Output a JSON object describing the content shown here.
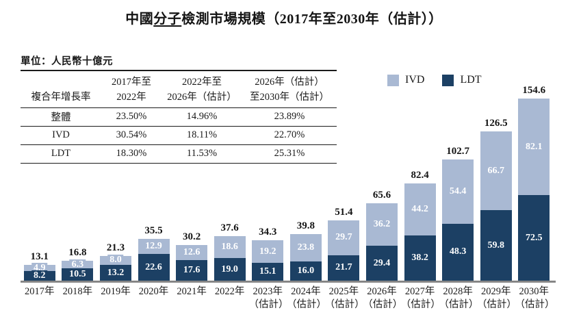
{
  "title": {
    "part1": "中國",
    "underlined": "分子",
    "part2": "檢測市場規模（2017年至2030年（估計））"
  },
  "unit_label": "單位：人民幣十億元",
  "cagr_table": {
    "header": [
      "複合年增長率",
      "2017年至\n2022年",
      "2022年至\n2026年（估計）",
      "2026年（估計）\n至2030年（估計）"
    ],
    "rows": [
      [
        "整體",
        "23.50%",
        "14.96%",
        "23.89%"
      ],
      [
        "IVD",
        "30.54%",
        "18.11%",
        "22.70%"
      ],
      [
        "LDT",
        "18.30%",
        "11.53%",
        "25.31%"
      ]
    ]
  },
  "chart_data": {
    "type": "bar",
    "stacked": true,
    "legend_position": "top-right",
    "grid": false,
    "ylim": [
      0,
      160
    ],
    "categories": [
      {
        "label": "2017年",
        "note": ""
      },
      {
        "label": "2018年",
        "note": ""
      },
      {
        "label": "2019年",
        "note": ""
      },
      {
        "label": "2020年",
        "note": ""
      },
      {
        "label": "2021年",
        "note": ""
      },
      {
        "label": "2022年",
        "note": ""
      },
      {
        "label": "2023年",
        "note": "（估計）"
      },
      {
        "label": "2024年",
        "note": "（估計）"
      },
      {
        "label": "2025年",
        "note": "（估計）"
      },
      {
        "label": "2026年",
        "note": "（估計）"
      },
      {
        "label": "2027年",
        "note": "（估計）"
      },
      {
        "label": "2028年",
        "note": "（估計）"
      },
      {
        "label": "2029年",
        "note": "（估計）"
      },
      {
        "label": "2030年",
        "note": "（估計）"
      }
    ],
    "series": [
      {
        "name": "IVD",
        "color": "#a9b9d3",
        "values": [
          4.9,
          6.3,
          8.0,
          12.9,
          12.6,
          18.6,
          19.2,
          23.8,
          29.7,
          36.2,
          44.2,
          54.4,
          66.7,
          82.1
        ]
      },
      {
        "name": "LDT",
        "color": "#1c4064",
        "values": [
          8.2,
          10.5,
          13.2,
          22.6,
          17.6,
          19.0,
          15.1,
          16.0,
          21.7,
          29.4,
          38.2,
          48.3,
          59.8,
          72.5
        ]
      }
    ],
    "totals": [
      13.1,
      16.8,
      21.3,
      35.5,
      30.2,
      37.6,
      34.3,
      39.8,
      51.4,
      65.6,
      82.4,
      102.7,
      126.5,
      154.6
    ]
  }
}
